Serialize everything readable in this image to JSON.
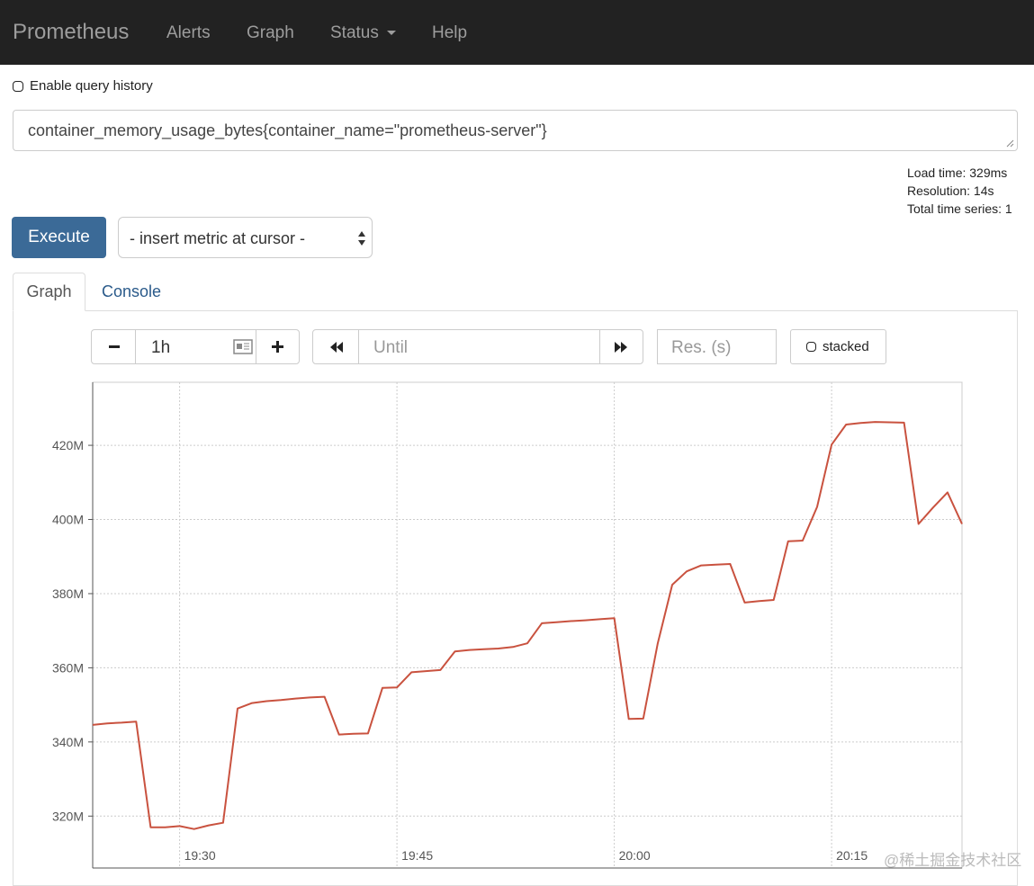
{
  "navbar": {
    "brand": "Prometheus",
    "links": [
      "Alerts",
      "Graph",
      "Status",
      "Help"
    ]
  },
  "query_history_label": "Enable query history",
  "query": "container_memory_usage_bytes{container_name=\"prometheus-server\"}",
  "stats": [
    "Load time: 329ms",
    "Resolution: 14s",
    "Total time series: 1"
  ],
  "execute": "Execute",
  "metric_select": "- insert metric at cursor -",
  "tabs": [
    "Graph",
    "Console"
  ],
  "controls": {
    "range": "1h",
    "until_placeholder": "Until",
    "resolution_placeholder": "Res. (s)",
    "stacked": "stacked"
  },
  "chart_data": {
    "type": "line",
    "x": [
      "19:24",
      "19:25",
      "19:26",
      "19:27",
      "19:28",
      "19:29",
      "19:30",
      "19:31",
      "19:32",
      "19:33",
      "19:34",
      "19:35",
      "19:36",
      "19:37",
      "19:38",
      "19:39",
      "19:40",
      "19:41",
      "19:42",
      "19:43",
      "19:44",
      "19:45",
      "19:46",
      "19:47",
      "19:48",
      "19:49",
      "19:50",
      "19:51",
      "19:52",
      "19:53",
      "19:54",
      "19:55",
      "19:56",
      "19:57",
      "19:58",
      "19:59",
      "20:00",
      "20:01",
      "20:02",
      "20:03",
      "20:04",
      "20:05",
      "20:06",
      "20:07",
      "20:08",
      "20:09",
      "20:10",
      "20:11",
      "20:12",
      "20:13",
      "20:14",
      "20:15",
      "20:16",
      "20:17",
      "20:18",
      "20:19",
      "20:20",
      "20:21",
      "20:22",
      "20:23",
      "20:24"
    ],
    "series": [
      {
        "color": "#c9523f",
        "values": [
          344600000,
          345000000,
          345200000,
          345500000,
          317000000,
          317000000,
          317300000,
          316500000,
          317500000,
          318200000,
          349000000,
          350500000,
          351000000,
          351300000,
          351700000,
          352000000,
          352200000,
          342000000,
          342200000,
          342300000,
          354600000,
          354700000,
          358800000,
          359100000,
          359400000,
          364400000,
          364800000,
          365000000,
          365200000,
          365600000,
          366600000,
          372000000,
          372300000,
          372600000,
          372800000,
          373100000,
          373400000,
          346200000,
          346300000,
          366600000,
          382400000,
          386000000,
          387600000,
          387800000,
          388000000,
          377600000,
          378000000,
          378300000,
          394100000,
          394300000,
          403400000,
          420200000,
          425600000,
          426000000,
          426300000,
          426200000,
          426100000,
          398800000,
          403200000,
          407300000,
          398800000
        ]
      }
    ],
    "xlim": [
      "19:24",
      "20:24"
    ],
    "xticks": [
      "19:30",
      "19:45",
      "20:00",
      "20:15"
    ],
    "ylim": [
      306000000,
      437000000
    ],
    "yticks": [
      {
        "value": 320000000,
        "label": "320M"
      },
      {
        "value": 340000000,
        "label": "340M"
      },
      {
        "value": 360000000,
        "label": "360M"
      },
      {
        "value": 380000000,
        "label": "380M"
      },
      {
        "value": 400000000,
        "label": "400M"
      },
      {
        "value": 420000000,
        "label": "420M"
      }
    ],
    "grid": true
  },
  "watermark": "@稀土掘金技术社区"
}
